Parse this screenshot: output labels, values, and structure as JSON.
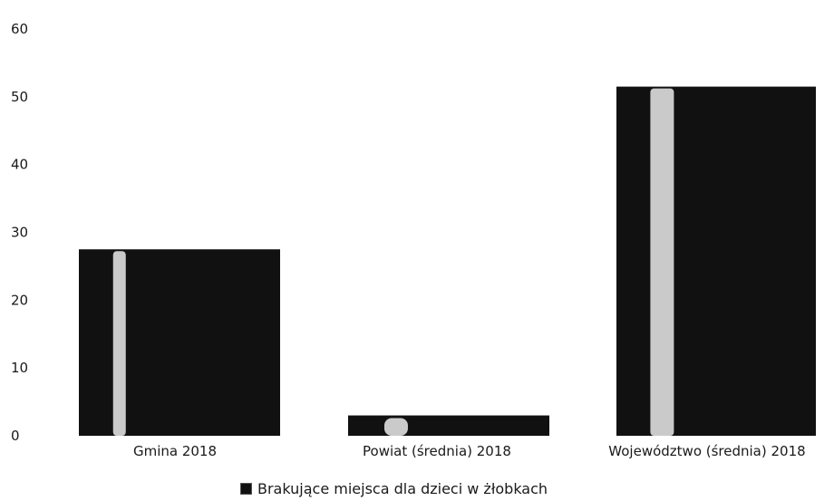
{
  "chart_data": {
    "type": "bar",
    "categories": [
      "Gmina 2018",
      "Powiat (średnia) 2018",
      "Województwo (średnia) 2018"
    ],
    "series": [
      {
        "name": "Brakujące miejsca dla dzieci w żłobkach",
        "values": [
          27.5,
          3,
          51.5
        ]
      }
    ],
    "yticks": [
      "0",
      "10",
      "20",
      "30",
      "40",
      "50",
      "60"
    ],
    "ylim": [
      0,
      60
    ],
    "grid": false,
    "legend_position": "bottom-center",
    "bar_color": "#111111",
    "highlight_color": "#ffffff"
  }
}
